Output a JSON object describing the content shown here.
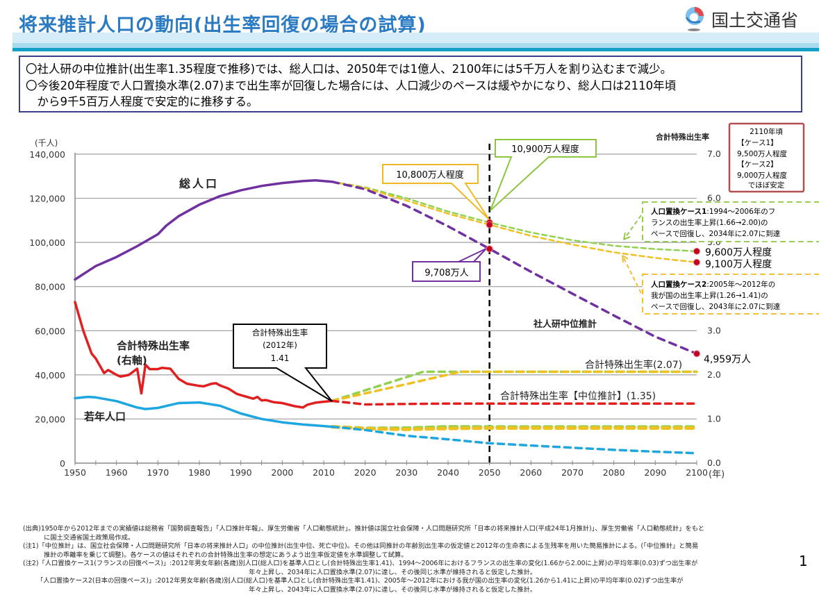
{
  "header": {
    "title": "将来推計人口の動向(出生率回復の場合の試算)",
    "logo_text": "国土交通省",
    "logo_icon": "mlit-logo-icon"
  },
  "summary": {
    "lines": [
      "〇社人研の中位推計(出生率1.35程度で推移)では、総人口は、2050年では1億人、2100年には5千万人を割り込むまで減少。",
      "〇今後20年程度で人口置換水準(2.07)まで出生率が回復した場合には、人口減少のペースは緩やかになり、総人口は2110年頃",
      "　から9千5百万人程度で安定的に推移する。"
    ]
  },
  "chart_data": {
    "type": "line",
    "title": "",
    "left_axis_unit": "(千人)",
    "right_axis_label": "合計特殊出生率",
    "x_axis_unit": "(年)",
    "xlim": [
      1950,
      2100
    ],
    "ylim_left": [
      0,
      140000
    ],
    "ylim_right": [
      0.0,
      7.0
    ],
    "x_ticks": [
      1950,
      1960,
      1970,
      1980,
      1990,
      2000,
      2010,
      2020,
      2030,
      2040,
      2050,
      2060,
      2070,
      2080,
      2090,
      2100
    ],
    "x_tick_labels": [
      "1950",
      "1960",
      "1970",
      "1980",
      "1990",
      "2000",
      "2010",
      "2020",
      "2030",
      "2040",
      "2050",
      "2060",
      "2070",
      "2080",
      "2090",
      "2100"
    ],
    "y_left_ticks": [
      0,
      20000,
      40000,
      60000,
      80000,
      100000,
      120000,
      140000
    ],
    "y_left_tick_labels": [
      "0",
      "20,000",
      "40,000",
      "60,000",
      "80,000",
      "100,000",
      "120,000",
      "140,000"
    ],
    "y_right_ticks": [
      0,
      1,
      2,
      3,
      4,
      5,
      6,
      7
    ],
    "y_right_tick_labels": [
      "0.0",
      "1.0",
      "2.0",
      "3.0",
      "4.0",
      "5.0",
      "6.0",
      "7.0"
    ],
    "grid": true,
    "reference_line": {
      "x": 2050,
      "style": "dashed",
      "color": "#000000"
    },
    "series": [
      {
        "name": "総人口(実績)",
        "axis": "left",
        "color": "#7030a0",
        "style": "solid",
        "x": [
          1950,
          1955,
          1960,
          1965,
          1970,
          1972,
          1975,
          1980,
          1985,
          1990,
          1995,
          2000,
          2005,
          2008,
          2010,
          2012
        ],
        "values": [
          83200,
          89300,
          93400,
          98300,
          103700,
          107600,
          111900,
          117100,
          121000,
          123600,
          125600,
          126900,
          127800,
          128100,
          127800,
          127500
        ]
      },
      {
        "name": "総人口(社人研中位推計)",
        "axis": "left",
        "color": "#7030a0",
        "style": "dashed",
        "x": [
          2012,
          2020,
          2030,
          2040,
          2050,
          2060,
          2070,
          2080,
          2090,
          2100
        ],
        "values": [
          127500,
          124100,
          116600,
          107300,
          97080,
          86700,
          76800,
          66900,
          57300,
          49590
        ]
      },
      {
        "name": "総人口(人口置換ケース1)",
        "axis": "left",
        "color": "#92d050",
        "style": "dashed",
        "x": [
          2012,
          2020,
          2030,
          2040,
          2050,
          2060,
          2070,
          2080,
          2090,
          2100
        ],
        "values": [
          127500,
          125000,
          120000,
          114000,
          109000,
          104500,
          101000,
          98500,
          97000,
          96000
        ]
      },
      {
        "name": "総人口(人口置換ケース2)",
        "axis": "left",
        "color": "#f0c020",
        "style": "dashed",
        "x": [
          2012,
          2020,
          2030,
          2040,
          2050,
          2060,
          2070,
          2080,
          2090,
          2100
        ],
        "values": [
          127500,
          124600,
          119000,
          113000,
          108000,
          103000,
          99000,
          95500,
          93000,
          91000
        ]
      },
      {
        "name": "合計特殊出生率(実績)",
        "axis": "right",
        "color": "#e02020",
        "style": "solid",
        "x": [
          1950,
          1952,
          1954,
          1955,
          1957,
          1958,
          1960,
          1961,
          1963,
          1965,
          1966,
          1967,
          1968,
          1970,
          1971,
          1973,
          1975,
          1977,
          1980,
          1981,
          1983,
          1984,
          1985,
          1987,
          1989,
          1990,
          1993,
          1994,
          1995,
          1996,
          1998,
          2000,
          2003,
          2005,
          2006,
          2008,
          2010,
          2012
        ],
        "values": [
          3.65,
          3.0,
          2.48,
          2.37,
          2.04,
          2.11,
          2.0,
          1.96,
          2.0,
          2.14,
          1.58,
          2.23,
          2.13,
          2.13,
          2.16,
          2.14,
          1.91,
          1.8,
          1.75,
          1.74,
          1.8,
          1.81,
          1.76,
          1.69,
          1.57,
          1.54,
          1.46,
          1.5,
          1.42,
          1.43,
          1.38,
          1.36,
          1.29,
          1.26,
          1.32,
          1.37,
          1.39,
          1.41
        ]
      },
      {
        "name": "合計特殊出生率【中位推計】",
        "axis": "right",
        "color": "#e02020",
        "style": "dashed",
        "x": [
          2012,
          2020,
          2030,
          2040,
          2050,
          2060,
          2070,
          2080,
          2090,
          2100
        ],
        "values": [
          1.41,
          1.33,
          1.34,
          1.35,
          1.35,
          1.35,
          1.35,
          1.35,
          1.35,
          1.35
        ]
      },
      {
        "name": "合計特殊出生率(ケース1)",
        "axis": "right",
        "color": "#92d050",
        "style": "dashed",
        "x": [
          2012,
          2020,
          2034,
          2040,
          2050,
          2100
        ],
        "values": [
          1.41,
          1.65,
          2.07,
          2.07,
          2.07,
          2.07
        ]
      },
      {
        "name": "合計特殊出生率(ケース2)",
        "axis": "right",
        "color": "#f0c020",
        "style": "dashed",
        "x": [
          2012,
          2020,
          2030,
          2043,
          2050,
          2100
        ],
        "values": [
          1.41,
          1.58,
          1.79,
          2.07,
          2.07,
          2.07
        ]
      },
      {
        "name": "若年人口(実績)",
        "axis": "left",
        "color": "#1ea6e0",
        "style": "solid",
        "x": [
          1950,
          1953,
          1955,
          1960,
          1965,
          1967,
          1970,
          1975,
          1980,
          1985,
          1990,
          1995,
          2000,
          2005,
          2010,
          2012
        ],
        "values": [
          29400,
          30000,
          29800,
          28100,
          25200,
          24500,
          25000,
          27200,
          27500,
          26000,
          22500,
          20000,
          18500,
          17500,
          16800,
          16500
        ]
      },
      {
        "name": "若年人口(社人研中位推計)",
        "axis": "left",
        "color": "#1ea6e0",
        "style": "dashed",
        "x": [
          2012,
          2020,
          2030,
          2040,
          2050,
          2060,
          2070,
          2080,
          2090,
          2100
        ],
        "values": [
          16500,
          15000,
          12400,
          10800,
          9000,
          8000,
          7000,
          6000,
          5200,
          4500
        ]
      },
      {
        "name": "若年人口(ケース1)",
        "axis": "left",
        "color": "#92d050",
        "style": "dashed",
        "x": [
          2012,
          2020,
          2030,
          2040,
          2050,
          2100
        ],
        "values": [
          16500,
          15800,
          15900,
          16500,
          16400,
          16400
        ]
      },
      {
        "name": "若年人口(ケース2)",
        "axis": "left",
        "color": "#f0c020",
        "style": "dashed",
        "x": [
          2012,
          2020,
          2030,
          2040,
          2050,
          2100
        ],
        "values": [
          16500,
          15600,
          15300,
          15700,
          15900,
          15900
        ]
      }
    ],
    "markers": [
      {
        "x": 2050,
        "y": 97080,
        "axis": "left",
        "label": "9,708万人"
      },
      {
        "x": 2050,
        "y": 109000,
        "axis": "left",
        "label": "10,900万人程度"
      },
      {
        "x": 2050,
        "y": 108000,
        "axis": "left",
        "label": "10,800万人程度"
      },
      {
        "x": 2100,
        "y": 96000,
        "axis": "left",
        "label": "9,600万人程度"
      },
      {
        "x": 2100,
        "y": 91000,
        "axis": "left",
        "label": "9,100万人程度"
      },
      {
        "x": 2100,
        "y": 49590,
        "axis": "left",
        "label": "4,959万人"
      }
    ],
    "annotations": {
      "total_pop_label": "総人口",
      "tfr_label_1": "合計特殊出生率",
      "tfr_label_2": "(右軸)",
      "youth_label": "若年人口",
      "ipss_label": "社人研中位推計",
      "tfr_207_label": "合計特殊出生率(2.07)",
      "tfr_135_label": "合計特殊出生率【中位推計】(1.35)",
      "tfr2012_callout": [
        "合計特殊出生率",
        "(2012年)",
        "1.41"
      ],
      "callout_10800": "10,800万人程度",
      "callout_10900": "10,900万人程度",
      "callout_9708": "9,708万人",
      "label_9600": "9,600万人程度",
      "label_9100": "9,100万人程度",
      "label_4959": "4,959万人",
      "box_2110": [
        "2110年頃",
        "【ケース1】",
        "9,500万人程度",
        "【ケース2】",
        "9,000万人程度",
        "でほぼ安定"
      ],
      "case1_box": {
        "bold": "人口置換ケース1",
        "lines": [
          ":1994～2006年のフ",
          "ランスの出生率上昇(1.66→2.00)の",
          "ペースで回復し、2034年に2.07に到達"
        ]
      },
      "case2_box": {
        "bold": "人口置換ケース2",
        "lines": [
          ":2005年～2012年の",
          "我が国の出生率上昇(1.26→1.41)の",
          "ペースで回復し、2043年に2.07に到達"
        ]
      }
    },
    "colors": {
      "purple": "#7030a0",
      "green": "#92d050",
      "yellow": "#f0c020",
      "red": "#e02020",
      "blue": "#1ea6e0",
      "marker": "#c00020",
      "box_2110_border": "#b05050"
    }
  },
  "notes": {
    "lines": [
      "(出典)1950年から2012年までの実績値は総務省「国勢調査報告」「人口推計年報」、厚生労働省「人口動態統計」。推計値は国立社会保障・人口問題研究所「日本の将来推計人口(平成24年1月推計)」、厚生労働省「人口動態統計」をもと",
      "に国土交通省国土政策局作成。",
      "(注1)「中位推計」は、国立社会保障・人口問題研究所「日本の将来推計人口」の中位推計(出生中位、死亡中位)。その他は同推計の年齢別出生率の仮定値と2012年の生命表による生残率を用いた簡易推計による。(「中位推計」と簡易",
      "推計の乖離率を乗じて調整)。各ケースの値はそれぞれの合計特殊出生率の想定にあうよう出生率仮定値を水準調整して試算。",
      "(注2)「人口置換ケース1(フランスの回復ペース)」:2012年男女年齢(各歳)別人口(総人口)を基準人口とし(合計特殊出生率1.41)、1994～2006年におけるフランスの出生率の変化(1.66から2.00に上昇)の平均年率(0.03)ずつ出生率が",
      "年々上昇し、2034年に人口置換水準(2.07)に達し、その後同じ水準が維持されると仮定した推計。",
      "「人口置換ケース2(日本の回復ペース)」:2012年男女年齢(各歳)別人口(総人口)を基準人口とし(合計特殊出生率1.41)、2005年～2012年における我が国の出生率の変化(1.26から1.41に上昇)の平均年率(0.02)ずつ出生率が",
      "年々上昇し、2043年に人口置換水準(2.07)に達し、その後同じ水準が維持されると仮定した推計。"
    ]
  },
  "page_number": "1"
}
